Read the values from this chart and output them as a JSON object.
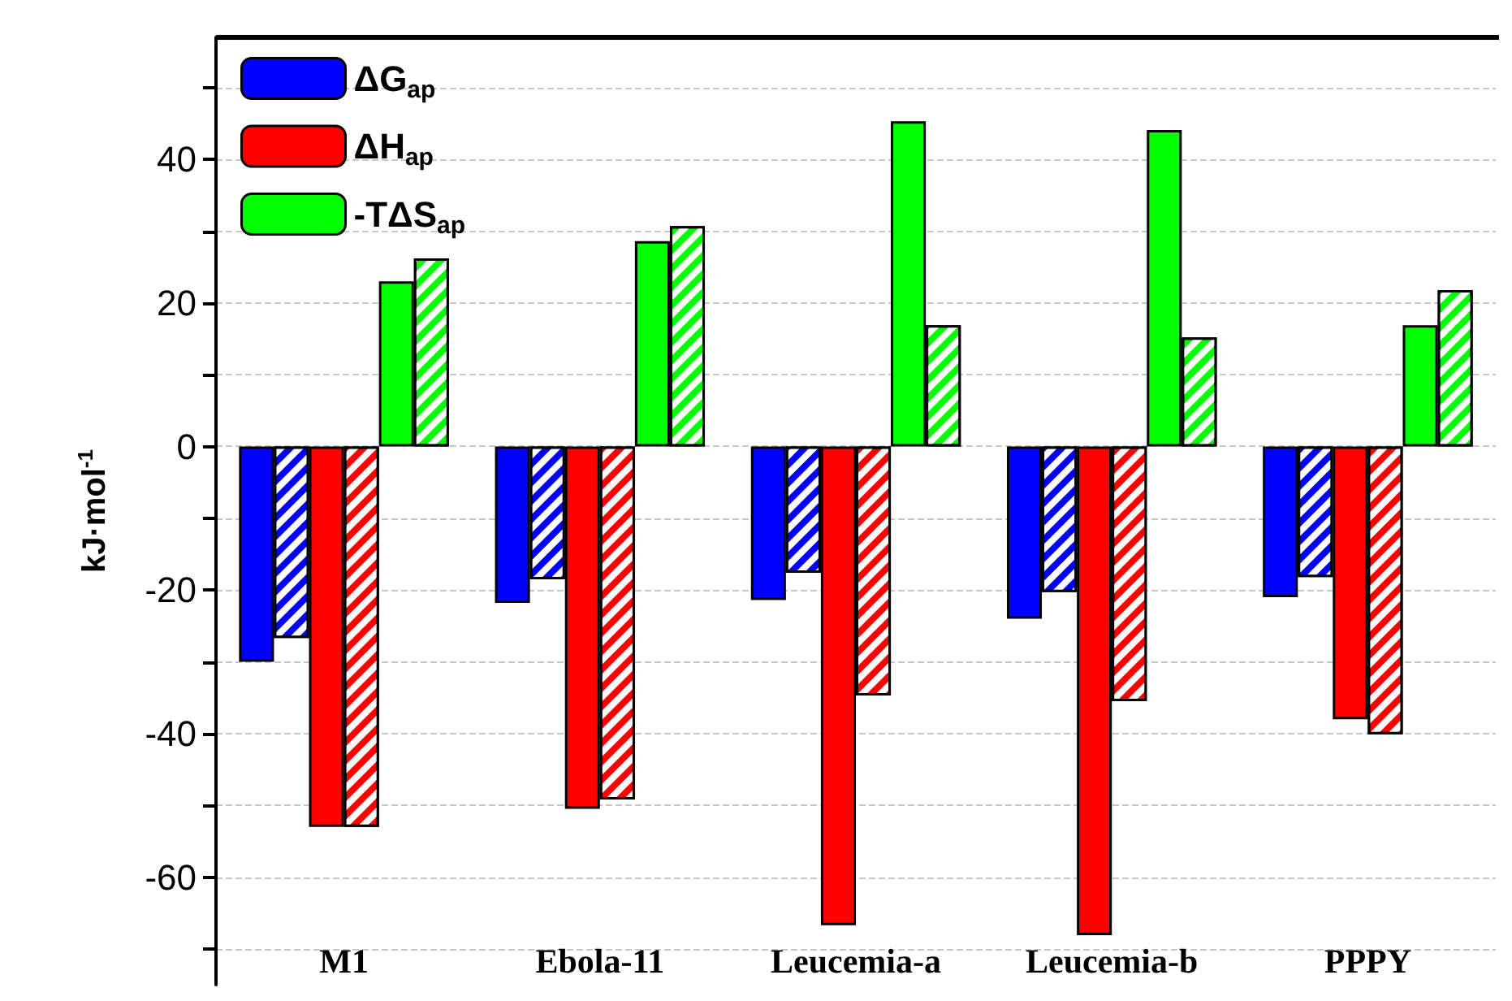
{
  "chart_data": {
    "type": "bar",
    "ylabel": "kJ·mol$^{-1}$",
    "categories": [
      "M1",
      "Ebola-11",
      "Leucemia-a",
      "Leucemia-b",
      "PPPY"
    ],
    "series": [
      {
        "name": "ΔG$_{ap}$",
        "color": "#0000ff",
        "values": [
          -30.0,
          -21.8,
          -21.4,
          -24.0,
          -21.0
        ]
      },
      {
        "color": "#0000ff",
        "values": [
          -26.7,
          -18.5,
          -17.6,
          -20.3,
          -18.2
        ]
      },
      {
        "name": "ΔH$_{ap}$",
        "color": "#ff0000",
        "values": [
          -53.0,
          -50.5,
          -66.7,
          -68.1,
          -38.0
        ]
      },
      {
        "color": "#ff0000",
        "values": [
          -53.0,
          -49.2,
          -34.7,
          -35.5,
          -40.1
        ]
      },
      {
        "name": "-TΔS$_{ap}$",
        "color": "#00ff00",
        "values": [
          23.0,
          28.6,
          45.3,
          44.1,
          16.9
        ]
      },
      {
        "color": "#00ff00",
        "values": [
          26.2,
          30.7,
          16.9,
          15.2,
          21.8
        ]
      }
    ],
    "ylim": [
      -75,
      57
    ],
    "yticks": [
      {
        "value": -70,
        "label": null
      },
      -60,
      {
        "value": -50,
        "label": null
      },
      -40,
      {
        "value": -30,
        "label": null
      },
      -20,
      {
        "value": -10,
        "label": null
      },
      0,
      {
        "value": 10,
        "label": null
      },
      20,
      {
        "value": 30,
        "label": null
      },
      40,
      {
        "value": 50,
        "label": null
      }
    ],
    "grid": "y",
    "legend": "top left"
  }
}
